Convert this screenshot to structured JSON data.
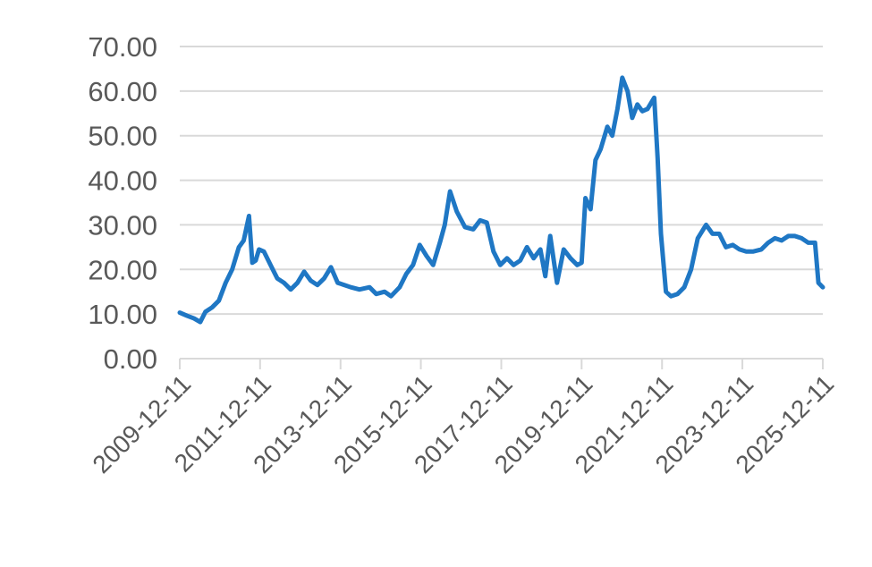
{
  "chart_data": {
    "type": "line",
    "title": "",
    "xlabel": "",
    "ylabel": "",
    "ylim": [
      0,
      70
    ],
    "xlim": [
      "2009-12-11",
      "2025-12-11"
    ],
    "grid": "horizontal",
    "legend": "none",
    "color": "#1f77c4",
    "yticks": [
      "0.00",
      "10.00",
      "20.00",
      "30.00",
      "40.00",
      "50.00",
      "60.00",
      "70.00"
    ],
    "xticks": [
      "2009-12-11",
      "2011-12-11",
      "2013-12-11",
      "2015-12-11",
      "2017-12-11",
      "2019-12-11",
      "2021-12-11",
      "2023-12-11",
      "2025-12-11"
    ],
    "series": [
      {
        "x": [
          "2009-12-11",
          "2010-02-15",
          "2010-04-20",
          "2010-06-15",
          "2010-08-01",
          "2010-10-01",
          "2010-12-01",
          "2011-02-01",
          "2011-04-01",
          "2011-06-01",
          "2011-07-15",
          "2011-09-01",
          "2011-10-01",
          "2011-11-01",
          "2011-12-01",
          "2012-01-15",
          "2012-03-15",
          "2012-05-15",
          "2012-07-15",
          "2012-09-15",
          "2012-11-15",
          "2013-01-15",
          "2013-03-15",
          "2013-05-15",
          "2013-07-15",
          "2013-09-15",
          "2013-11-15",
          "2014-01-15",
          "2014-03-15",
          "2014-06-01",
          "2014-09-01",
          "2014-11-01",
          "2015-01-15",
          "2015-03-15",
          "2015-06-01",
          "2015-08-01",
          "2015-10-01",
          "2015-12-01",
          "2016-02-01",
          "2016-04-01",
          "2016-06-01",
          "2016-07-15",
          "2016-09-01",
          "2016-11-01",
          "2017-01-15",
          "2017-04-01",
          "2017-06-01",
          "2017-08-01",
          "2017-10-01",
          "2017-12-01",
          "2018-02-01",
          "2018-04-01",
          "2018-06-01",
          "2018-08-01",
          "2018-10-01",
          "2018-12-01",
          "2019-01-15",
          "2019-03-01",
          "2019-05-01",
          "2019-07-01",
          "2019-09-01",
          "2019-11-01",
          "2019-12-11",
          "2020-01-15",
          "2020-03-01",
          "2020-04-15",
          "2020-06-01",
          "2020-08-01",
          "2020-09-15",
          "2020-11-01",
          "2020-12-15",
          "2021-02-01",
          "2021-03-15",
          "2021-05-01",
          "2021-06-15",
          "2021-08-01",
          "2021-10-01",
          "2021-11-01",
          "2021-12-01",
          "2022-01-15",
          "2022-03-01",
          "2022-05-01",
          "2022-07-01",
          "2022-09-01",
          "2022-11-01",
          "2023-01-15",
          "2023-03-15",
          "2023-05-15",
          "2023-07-15",
          "2023-09-15",
          "2023-11-15",
          "2024-01-15",
          "2024-03-15",
          "2024-06-01",
          "2024-08-01",
          "2024-10-01",
          "2024-12-01",
          "2025-02-01",
          "2025-04-01",
          "2025-06-01",
          "2025-08-01",
          "2025-10-01",
          "2025-11-01",
          "2025-12-11"
        ],
        "y": [
          10.3,
          9.6,
          9.0,
          8.2,
          10.5,
          11.5,
          13.0,
          17.0,
          20.0,
          25.0,
          26.5,
          32.0,
          21.5,
          22.0,
          24.5,
          24.0,
          21.0,
          18.0,
          17.0,
          15.5,
          17.0,
          19.5,
          17.5,
          16.5,
          18.0,
          20.5,
          17.0,
          16.5,
          16.0,
          15.5,
          16.0,
          14.5,
          15.0,
          14.0,
          16.0,
          19.0,
          21.0,
          25.5,
          23.0,
          21.0,
          26.0,
          30.0,
          37.5,
          33.0,
          29.5,
          29.0,
          31.0,
          30.5,
          24.0,
          21.0,
          22.5,
          21.0,
          22.0,
          25.0,
          22.5,
          24.5,
          18.5,
          27.5,
          17.0,
          24.5,
          22.5,
          21.0,
          21.5,
          36.0,
          33.5,
          44.5,
          47.0,
          52.0,
          50.0,
          56.0,
          63.0,
          60.0,
          54.0,
          57.0,
          55.5,
          56.0,
          58.5,
          45.0,
          28.0,
          15.0,
          14.0,
          14.5,
          16.0,
          20.0,
          27.0,
          30.0,
          28.0,
          28.0,
          25.0,
          25.5,
          24.5,
          24.0,
          24.0,
          24.5,
          26.0,
          27.0,
          26.5,
          27.5,
          27.5,
          27.0,
          26.0,
          26.0,
          17.0,
          16.0
        ]
      }
    ]
  }
}
